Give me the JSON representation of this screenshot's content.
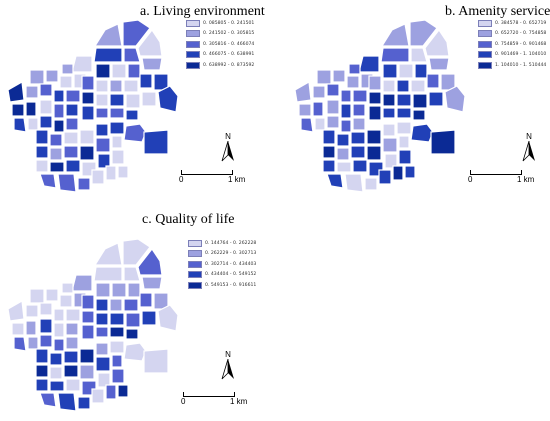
{
  "colors": {
    "class1": "#d4d5f0",
    "class2": "#9da1e0",
    "class3": "#5561cf",
    "class4": "#2140b7",
    "class5": "#0b2a95"
  },
  "panels": [
    {
      "title": "a. Living environment",
      "legend": [
        "0. 085805 - 0. 241501",
        "0. 241502 - 0. 305815",
        "0. 305816 - 0. 466074",
        "0. 466075 - 0. 638991",
        "0. 638992 - 0. 873592"
      ],
      "north": "N",
      "scale_start": "0",
      "scale_end": "1 km",
      "values": [
        2,
        3,
        1,
        4,
        3,
        2,
        1,
        2,
        2,
        2,
        1,
        1,
        5,
        2,
        3,
        4,
        3,
        3,
        5,
        1,
        3,
        5,
        5,
        4,
        1,
        1,
        3,
        4,
        5,
        1,
        2,
        1,
        4,
        4,
        4,
        4,
        1,
        4,
        1,
        1,
        4,
        5,
        3,
        3,
        3,
        4,
        3,
        4,
        4,
        3,
        1,
        1,
        4,
        4,
        3,
        5,
        3,
        1,
        4,
        2,
        1,
        5,
        4,
        1,
        4,
        1,
        3,
        3,
        3,
        1,
        1,
        1
      ]
    },
    {
      "title": "b. Amenity service",
      "legend": [
        "0. 384578 - 0. 652719",
        "0. 652720 - 0. 754858",
        "0. 754859 - 0. 901468",
        "0. 901469 - 1. 104010",
        "1. 104010 - 1. 510444"
      ],
      "north": "N",
      "scale_start": "0",
      "scale_end": "1 km",
      "values": [
        2,
        2,
        1,
        3,
        1,
        2,
        4,
        3,
        2,
        2,
        2,
        2,
        2,
        2,
        3,
        3,
        3,
        2,
        4,
        1,
        4,
        2,
        3,
        3,
        1,
        2,
        4,
        3,
        5,
        1,
        4,
        1,
        3,
        2,
        2,
        5,
        5,
        4,
        5,
        4,
        2,
        3,
        2,
        4,
        4,
        5,
        4,
        5,
        4,
        4,
        4,
        5,
        1,
        1,
        4,
        5,
        2,
        1,
        5,
        2,
        4,
        1,
        4,
        4,
        1,
        4,
        4,
        1,
        1,
        4,
        5,
        4
      ]
    },
    {
      "title": "c. Quality of life",
      "legend": [
        "0. 144764 - 0. 262228",
        "0. 262229 - 0. 302713",
        "0. 302714 - 0. 434403",
        "0. 434404 - 0. 549152",
        "0. 549153 - 0. 916611"
      ],
      "north": "N",
      "scale_start": "0",
      "scale_end": "1 km",
      "values": [
        1,
        1,
        3,
        1,
        1,
        2,
        2,
        1,
        1,
        1,
        1,
        2,
        1,
        1,
        1,
        1,
        1,
        3,
        2,
        2,
        2,
        1,
        2,
        3,
        2,
        4,
        1,
        2,
        3,
        4,
        2,
        3,
        3,
        2,
        1,
        3,
        4,
        4,
        3,
        4,
        3,
        3,
        2,
        3,
        5,
        5,
        1,
        1,
        4,
        4,
        4,
        5,
        2,
        1,
        5,
        2,
        4,
        3,
        5,
        1,
        4,
        4,
        1,
        3,
        1,
        3,
        3,
        4,
        4,
        1,
        3,
        5
      ]
    }
  ]
}
